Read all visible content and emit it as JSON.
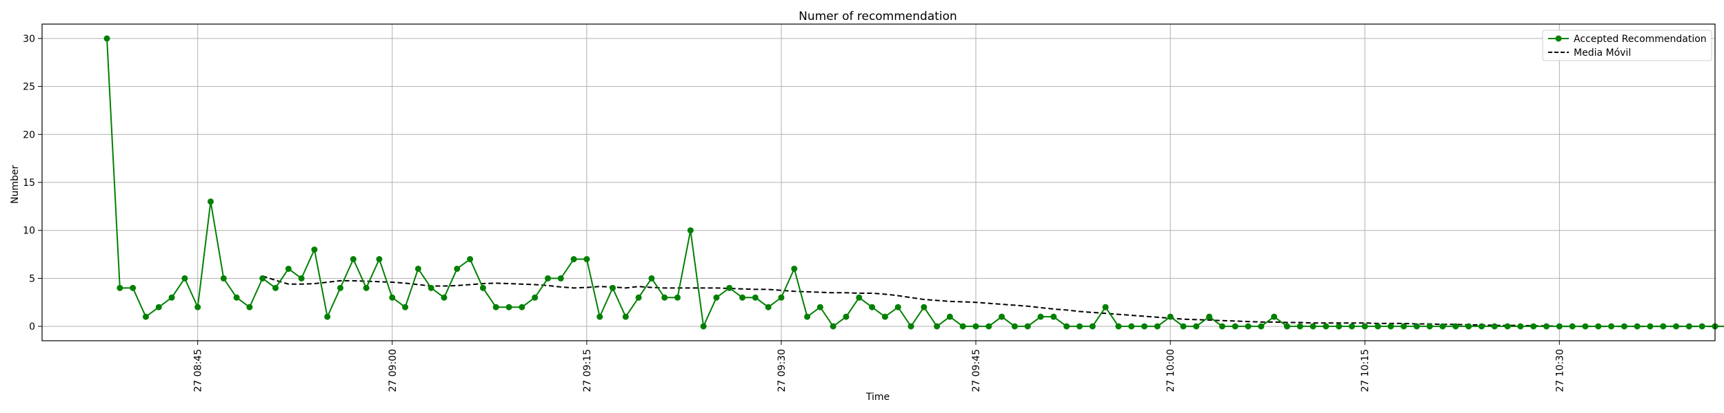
{
  "chart_data": {
    "type": "line",
    "title": "Numer of recommendation",
    "xlabel": "Time",
    "ylabel": "Number",
    "grid": true,
    "legend_position": "top-right",
    "x_start": "08:38",
    "x_step_minutes": 1,
    "xlim": [
      "08:33",
      "10:42"
    ],
    "ylim": [
      -1.5,
      31.5
    ],
    "x_ticks": [
      {
        "time": "08:45",
        "label": "27 08:45"
      },
      {
        "time": "09:00",
        "label": "27 09:00"
      },
      {
        "time": "09:15",
        "label": "27 09:15"
      },
      {
        "time": "09:30",
        "label": "27 09:30"
      },
      {
        "time": "09:45",
        "label": "27 09:45"
      },
      {
        "time": "10:00",
        "label": "27 10:00"
      },
      {
        "time": "10:15",
        "label": "27 10:15"
      },
      {
        "time": "10:30",
        "label": "27 10:30"
      }
    ],
    "y_ticks": [
      0,
      5,
      10,
      15,
      20,
      25,
      30
    ],
    "series": [
      {
        "name": "Accepted Recommendation",
        "color": "#008000",
        "style": "line-with-markers",
        "values": [
          30,
          4,
          4,
          1,
          2,
          3,
          5,
          2,
          13,
          5,
          3,
          2,
          5,
          4,
          6,
          5,
          8,
          1,
          4,
          7,
          4,
          7,
          3,
          2,
          6,
          4,
          3,
          6,
          7,
          4,
          2,
          2,
          2,
          3,
          5,
          5,
          7,
          7,
          1,
          4,
          1,
          3,
          5,
          3,
          3,
          10,
          0,
          3,
          4,
          3,
          3,
          2,
          3,
          6,
          1,
          2,
          0,
          1,
          3,
          2,
          1,
          2,
          0,
          2,
          0,
          1,
          0,
          0,
          0,
          1,
          0,
          0,
          1,
          1,
          0,
          0,
          0,
          2,
          0,
          0,
          0,
          0,
          1,
          0,
          0,
          1,
          0,
          0,
          0,
          0,
          1,
          0,
          0,
          0,
          0,
          0,
          0,
          0,
          0,
          0,
          0,
          0,
          0,
          0,
          0,
          0,
          0,
          0,
          0,
          0,
          0,
          0,
          0,
          0,
          0,
          0,
          0,
          0,
          0,
          0,
          0,
          0,
          0,
          0,
          0,
          0,
          0
        ]
      },
      {
        "name": "Media Móvil",
        "color": "#000000",
        "style": "dashed",
        "offset": 12,
        "values": [
          5.25,
          4.8,
          4.4,
          4.4,
          4.45,
          4.6,
          4.75,
          4.75,
          4.7,
          4.65,
          4.6,
          4.5,
          4.35,
          4.2,
          4.2,
          4.25,
          4.35,
          4.45,
          4.5,
          4.45,
          4.4,
          4.35,
          4.25,
          4.1,
          4.0,
          4.05,
          4.15,
          4.1,
          4.0,
          4.15,
          4.05,
          4.0,
          4.0,
          4.0,
          4.0,
          4.0,
          3.95,
          3.9,
          3.85,
          3.85,
          3.75,
          3.65,
          3.6,
          3.55,
          3.5,
          3.5,
          3.45,
          3.45,
          3.35,
          3.2,
          3.0,
          2.8,
          2.7,
          2.6,
          2.55,
          2.5,
          2.4,
          2.3,
          2.2,
          2.1,
          1.95,
          1.8,
          1.7,
          1.55,
          1.45,
          1.35,
          1.25,
          1.15,
          1.05,
          0.95,
          0.85,
          0.75,
          0.7,
          0.65,
          0.6,
          0.55,
          0.5,
          0.45,
          0.45,
          0.4,
          0.4,
          0.35,
          0.35,
          0.35,
          0.35,
          0.35,
          0.3,
          0.3,
          0.3,
          0.25,
          0.25,
          0.2,
          0.2,
          0.15,
          0.15,
          0.1,
          0.1,
          0.1,
          0.05,
          0.05,
          0,
          0,
          0,
          0,
          0,
          0,
          0,
          0,
          0,
          0,
          0,
          0,
          0,
          0,
          0,
          0,
          0
        ]
      }
    ]
  }
}
